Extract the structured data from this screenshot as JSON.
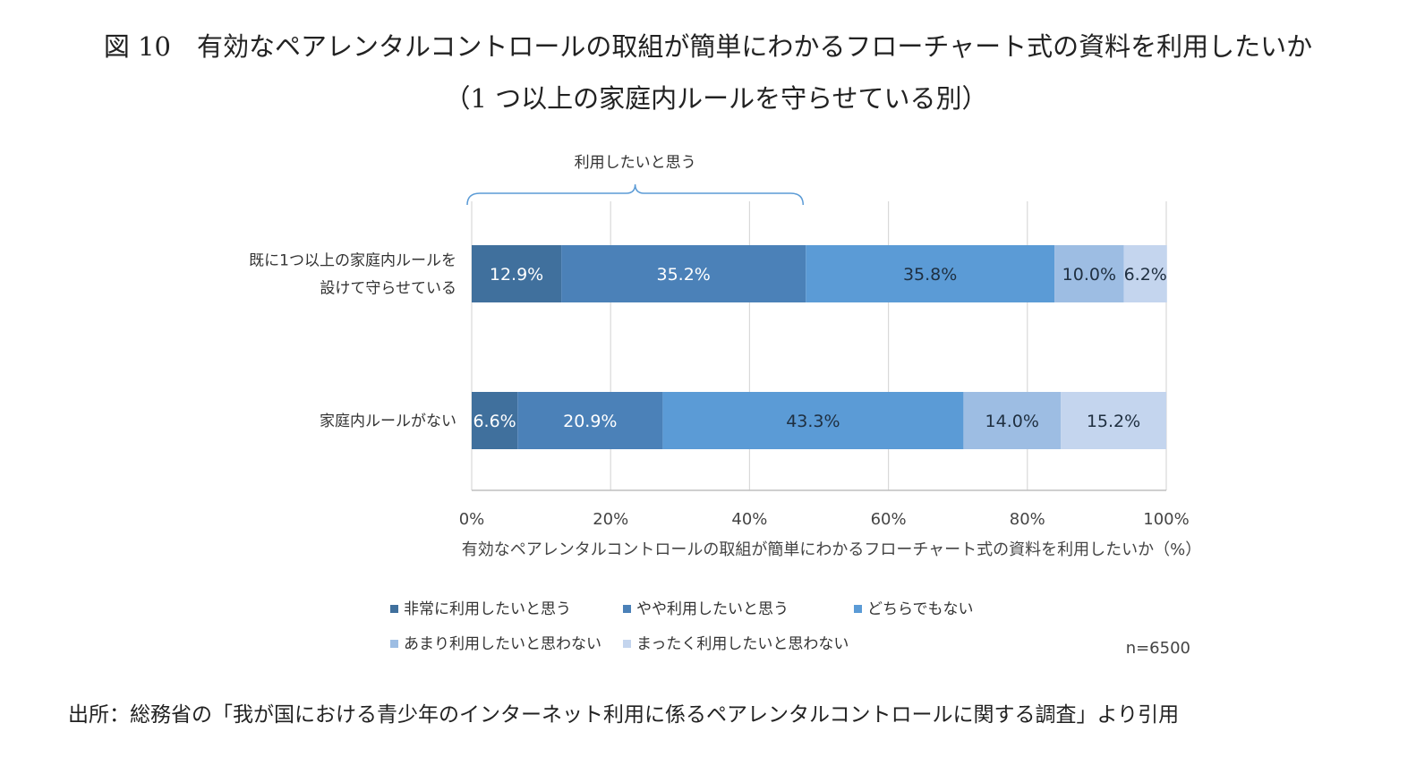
{
  "title": {
    "line1": "図 10　有効なペアレンタルコントロールの取組が簡単にわかるフローチャート式の資料を利用したいか",
    "line2": "（1 つ以上の家庭内ルールを守らせている別）"
  },
  "bracket_label": "利用したいと思う",
  "sample_size": "n=6500",
  "source": "出所：総務省の「我が国における青少年のインターネット利用に係るペアレンタルコントロールに関する調査」より引用",
  "chart_data": {
    "type": "bar",
    "orientation": "horizontal",
    "stacked": true,
    "percent_stacked": true,
    "categories": [
      [
        "既に1つ以上の家庭内ルールを",
        "設けて守らせている"
      ],
      [
        "家庭内ルールがない"
      ]
    ],
    "series": [
      {
        "name": "非常に利用したいと思う",
        "values": [
          12.9,
          6.6
        ],
        "labels": [
          "12.9%",
          "6.6%"
        ],
        "color": "#40709d",
        "label_color": "#ffffff"
      },
      {
        "name": "やや利用したいと思う",
        "values": [
          35.2,
          20.9
        ],
        "labels": [
          "35.2%",
          "20.9%"
        ],
        "color": "#4b81b8",
        "label_color": "#ffffff"
      },
      {
        "name": "どちらでもない",
        "values": [
          35.8,
          43.3
        ],
        "labels": [
          "35.8%",
          "43.3%"
        ],
        "color": "#5b9bd6",
        "label_color": "#1f2f40"
      },
      {
        "name": "あまり利用したいと思わない",
        "values": [
          10.0,
          14.0
        ],
        "labels": [
          "10.0%",
          "14.0%"
        ],
        "color": "#9dbde3",
        "label_color": "#1f2f40"
      },
      {
        "name": "まったく利用したいと思わない",
        "values": [
          6.2,
          15.2
        ],
        "labels": [
          "6.2%",
          "15.2%"
        ],
        "color": "#c4d5ee",
        "label_color": "#1f2f40"
      }
    ],
    "xlabel": "有効なペアレンタルコントロールの取組が簡単にわかるフローチャート式の資料を利用したいか（%）",
    "ylabel": "",
    "xlim": [
      0,
      100
    ],
    "x_ticks": [
      0,
      20,
      40,
      60,
      80,
      100
    ],
    "x_tick_labels": [
      "0%",
      "20%",
      "40%",
      "60%",
      "80%",
      "100%"
    ],
    "grid": true,
    "legend_position": "bottom",
    "bracket": {
      "from": 0,
      "to": 48.1,
      "row": 0
    },
    "colors": {
      "gridline": "#d9d9d9",
      "axis": "#bfbfbf",
      "bracket": "#5b9bd6"
    }
  }
}
